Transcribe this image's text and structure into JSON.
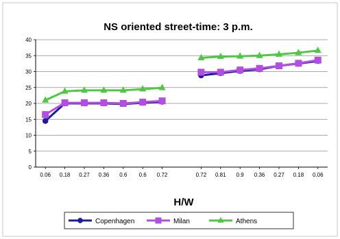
{
  "chart_data": {
    "type": "line",
    "title": "NS oriented street-time: 3 p.m.",
    "xlabel": "H/W",
    "ylabel": "",
    "ylim": [
      0,
      40
    ],
    "yticks": [
      0,
      5,
      10,
      15,
      20,
      25,
      30,
      35,
      40
    ],
    "grid": true,
    "legend_position": "bottom",
    "groups": [
      {
        "categories": [
          "0.06",
          "0.18",
          "0.27",
          "0.36",
          "0.6",
          "0.6",
          "0.72"
        ]
      },
      {
        "categories": [
          "0.72",
          "0.81",
          "0.9",
          "0.36",
          "0.27",
          "0.18",
          "0.06"
        ]
      }
    ],
    "series": [
      {
        "name": "Copenhagen",
        "color": "#1c1c9c",
        "marker": "circle",
        "values": [
          [
            14.5,
            20,
            20,
            20,
            19.8,
            20.2,
            20.5
          ],
          [
            28.8,
            29.5,
            30.2,
            30.7,
            31.8,
            32.5,
            33.3
          ]
        ]
      },
      {
        "name": "Milan",
        "color": "#b24fe0",
        "marker": "square",
        "values": [
          [
            16.5,
            20.2,
            20.2,
            20.2,
            20,
            20.4,
            20.8
          ],
          [
            29.8,
            29.8,
            30.5,
            31,
            31.8,
            32.6,
            33.6
          ]
        ]
      },
      {
        "name": "Athens",
        "color": "#4ec742",
        "marker": "triangle",
        "values": [
          [
            21,
            23.8,
            24.1,
            24.1,
            24.1,
            24.5,
            24.9
          ],
          [
            34.3,
            34.7,
            34.8,
            35,
            35.4,
            35.9,
            36.6
          ]
        ]
      }
    ]
  }
}
